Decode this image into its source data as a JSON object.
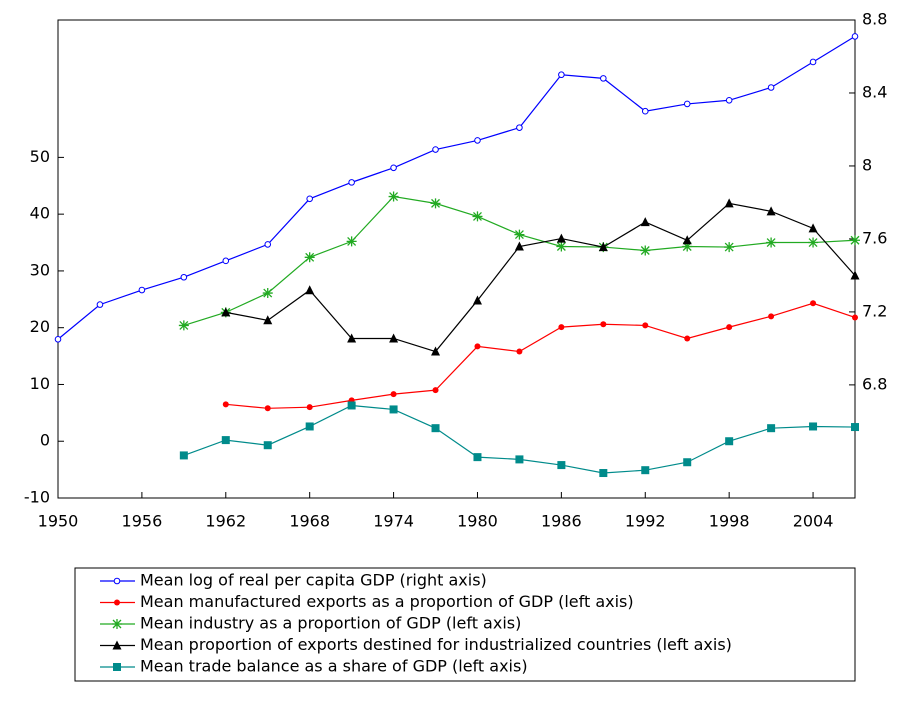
{
  "chart_data": {
    "type": "line",
    "x": [
      1950,
      1953,
      1956,
      1959,
      1962,
      1965,
      1968,
      1971,
      1974,
      1977,
      1980,
      1983,
      1986,
      1989,
      1992,
      1995,
      1998,
      2001,
      2004,
      2007
    ],
    "xlim": [
      1950,
      2007
    ],
    "xticks": [
      1950,
      1956,
      1962,
      1968,
      1974,
      1980,
      1986,
      1992,
      1998,
      2004
    ],
    "ylim": [
      -10,
      74.2
    ],
    "yticks": [
      -10,
      0,
      10,
      20,
      30,
      40,
      50
    ],
    "y2lim": [
      6.18,
      8.8
    ],
    "y2ticks": [
      6.8,
      7.2,
      7.6,
      8.0,
      8.4,
      8.8
    ],
    "series": [
      {
        "name": "Mean log of real per capita GDP (right axis)",
        "color": "#0000ff",
        "marker": "open-circle",
        "axis": "y2",
        "values": [
          7.05,
          7.24,
          7.32,
          7.39,
          7.48,
          7.57,
          7.82,
          7.91,
          7.99,
          8.09,
          8.14,
          8.21,
          8.5,
          8.48,
          8.3,
          8.34,
          8.36,
          8.43,
          8.57,
          8.71
        ]
      },
      {
        "name": "Mean manufactured exports as a proportion of GDP (left axis)",
        "color": "#ff0000",
        "marker": "dot",
        "values": [
          null,
          null,
          null,
          null,
          6.5,
          5.8,
          6.0,
          7.2,
          8.3,
          9.0,
          16.7,
          15.8,
          20.1,
          20.6,
          20.4,
          18.1,
          20.1,
          22.0,
          24.3,
          21.8
        ]
      },
      {
        "name": "Mean industry as a proportion of GDP (left axis)",
        "color": "#22aa22",
        "marker": "star",
        "values": [
          null,
          null,
          null,
          20.4,
          22.7,
          26.1,
          32.4,
          35.2,
          43.1,
          41.9,
          39.6,
          36.4,
          34.3,
          34.2,
          33.6,
          34.3,
          34.2,
          35.0,
          35.0,
          35.4
        ]
      },
      {
        "name": "Mean proportion of exports destined for industrialized countries (left axis)",
        "color": "#000000",
        "marker": "triangle",
        "values": [
          null,
          null,
          null,
          null,
          22.7,
          21.3,
          26.6,
          18.1,
          18.1,
          15.8,
          24.8,
          34.3,
          35.7,
          34.2,
          38.6,
          35.4,
          41.9,
          40.5,
          37.5,
          29.2
        ]
      },
      {
        "name": "Mean trade balance as a share of GDP (left axis)",
        "color": "#008b8b",
        "marker": "square",
        "values": [
          null,
          null,
          null,
          -2.5,
          0.2,
          -0.7,
          2.6,
          6.3,
          5.6,
          2.3,
          -2.8,
          -3.2,
          -4.2,
          -5.6,
          -5.1,
          -3.7,
          0.0,
          2.3,
          2.6,
          2.5
        ]
      }
    ]
  }
}
